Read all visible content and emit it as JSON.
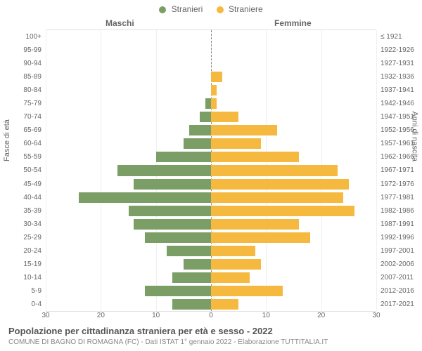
{
  "legend": {
    "male": {
      "label": "Stranieri",
      "color": "#7a9e65"
    },
    "female": {
      "label": "Straniere",
      "color": "#f5b93f"
    }
  },
  "headers": {
    "male_col": "Maschi",
    "female_col": "Femmine",
    "left_axis": "Fasce di età",
    "right_axis": "Anni di nascita"
  },
  "chart": {
    "type": "population-pyramid",
    "x_max": 30,
    "x_ticks": [
      30,
      20,
      10,
      0,
      10,
      20,
      30
    ],
    "grid_color": "#f0f0f0",
    "center_line_color": "#888888",
    "background_color": "#ffffff",
    "bar_colors": {
      "male": "#7a9e65",
      "female": "#f5b93f"
    },
    "label_fontsize": 10,
    "rows": [
      {
        "age": "100+",
        "birth": "≤ 1921",
        "male": 0,
        "female": 0
      },
      {
        "age": "95-99",
        "birth": "1922-1926",
        "male": 0,
        "female": 0
      },
      {
        "age": "90-94",
        "birth": "1927-1931",
        "male": 0,
        "female": 0
      },
      {
        "age": "85-89",
        "birth": "1932-1936",
        "male": 0,
        "female": 2
      },
      {
        "age": "80-84",
        "birth": "1937-1941",
        "male": 0,
        "female": 1
      },
      {
        "age": "75-79",
        "birth": "1942-1946",
        "male": 1,
        "female": 1
      },
      {
        "age": "70-74",
        "birth": "1947-1951",
        "male": 2,
        "female": 5
      },
      {
        "age": "65-69",
        "birth": "1952-1956",
        "male": 4,
        "female": 12
      },
      {
        "age": "60-64",
        "birth": "1957-1961",
        "male": 5,
        "female": 9
      },
      {
        "age": "55-59",
        "birth": "1962-1966",
        "male": 10,
        "female": 16
      },
      {
        "age": "50-54",
        "birth": "1967-1971",
        "male": 17,
        "female": 23
      },
      {
        "age": "45-49",
        "birth": "1972-1976",
        "male": 14,
        "female": 25
      },
      {
        "age": "40-44",
        "birth": "1977-1981",
        "male": 24,
        "female": 24
      },
      {
        "age": "35-39",
        "birth": "1982-1986",
        "male": 15,
        "female": 26
      },
      {
        "age": "30-34",
        "birth": "1987-1991",
        "male": 14,
        "female": 16
      },
      {
        "age": "25-29",
        "birth": "1992-1996",
        "male": 12,
        "female": 18
      },
      {
        "age": "20-24",
        "birth": "1997-2001",
        "male": 8,
        "female": 8
      },
      {
        "age": "15-19",
        "birth": "2002-2006",
        "male": 5,
        "female": 9
      },
      {
        "age": "10-14",
        "birth": "2007-2011",
        "male": 7,
        "female": 7
      },
      {
        "age": "5-9",
        "birth": "2012-2016",
        "male": 12,
        "female": 13
      },
      {
        "age": "0-4",
        "birth": "2017-2021",
        "male": 7,
        "female": 5
      }
    ]
  },
  "footer": {
    "title": "Popolazione per cittadinanza straniera per età e sesso - 2022",
    "subtitle": "COMUNE DI BAGNO DI ROMAGNA (FC) - Dati ISTAT 1° gennaio 2022 - Elaborazione TUTTITALIA.IT"
  }
}
